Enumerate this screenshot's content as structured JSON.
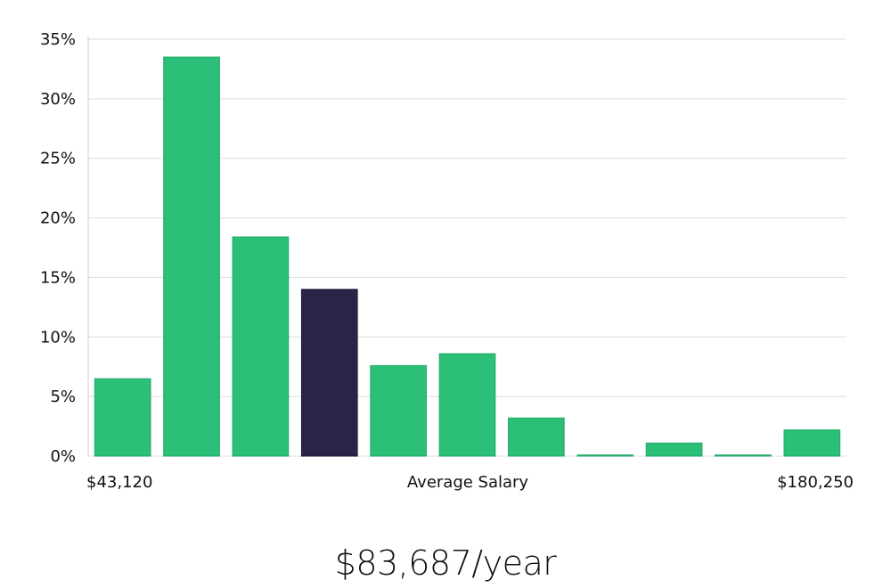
{
  "chart_data": {
    "type": "bar",
    "title": "",
    "xlabel": "Average Salary",
    "ylabel": "",
    "x_min_label": "$43,120",
    "x_max_label": "$180,250",
    "ylim": [
      0,
      35
    ],
    "yticks": [
      0,
      5,
      10,
      15,
      20,
      25,
      30,
      35
    ],
    "ytick_labels": [
      "0%",
      "5%",
      "10%",
      "15%",
      "20%",
      "25%",
      "30%",
      "35%"
    ],
    "values": [
      6.5,
      33.5,
      18.4,
      14.0,
      7.6,
      8.6,
      3.2,
      0.1,
      1.1,
      0.1,
      2.2
    ],
    "highlight_index": 3,
    "colors": {
      "bar": "#2bbf78",
      "highlight": "#2a2547",
      "grid": "#dcdcdc"
    }
  },
  "footer": {
    "salary_text": "$83,687/year"
  }
}
